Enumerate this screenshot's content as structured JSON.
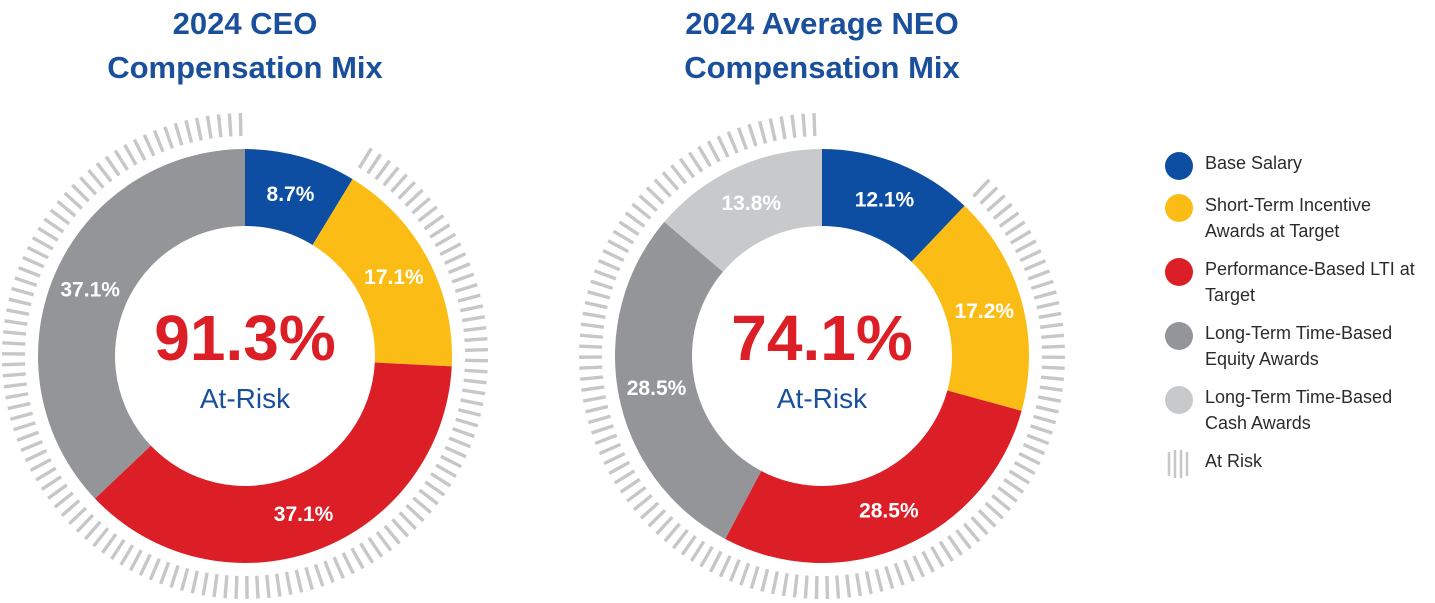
{
  "colors": {
    "base_salary": "#0e4ea2",
    "sti": "#fbbd15",
    "perf_lti": "#dc1f26",
    "time_equity": "#939598",
    "time_cash": "#c8c9cb",
    "at_risk_ticks": "#c6c7c8",
    "title": "#1a4f9c",
    "at_risk_pct": "#dc1f26"
  },
  "chart_data": [
    {
      "type": "pie",
      "title_line1": "2024 CEO",
      "title_line2": "Compensation Mix",
      "center_value": "91.3%",
      "center_label": "At-Risk",
      "slices": [
        {
          "key": "base_salary",
          "label": "Base Salary",
          "value": 8.7,
          "display": "8.7%"
        },
        {
          "key": "sti",
          "label": "Short-Term Incentive Awards at Target",
          "value": 17.1,
          "display": "17.1%"
        },
        {
          "key": "perf_lti",
          "label": "Performance-Based LTI at Target",
          "value": 37.1,
          "display": "37.1%"
        },
        {
          "key": "time_equity",
          "label": "Long-Term Time-Based Equity Awards",
          "value": 37.1,
          "display": "37.1%"
        }
      ]
    },
    {
      "type": "pie",
      "title_line1": "2024 Average NEO",
      "title_line2": "Compensation Mix",
      "center_value": "74.1%",
      "center_label": "At-Risk",
      "slices": [
        {
          "key": "base_salary",
          "label": "Base Salary",
          "value": 12.1,
          "display": "12.1%"
        },
        {
          "key": "sti",
          "label": "Short-Term Incentive Awards at Target",
          "value": 17.2,
          "display": "17.2%"
        },
        {
          "key": "perf_lti",
          "label": "Performance-Based LTI at Target",
          "value": 28.5,
          "display": "28.5%"
        },
        {
          "key": "time_equity",
          "label": "Long-Term Time-Based Equity Awards",
          "value": 28.5,
          "display": "28.5%"
        },
        {
          "key": "time_cash",
          "label": "Long-Term Time-Based Cash Awards",
          "value": 13.8,
          "display": "13.8%"
        }
      ]
    }
  ],
  "legend": [
    {
      "key": "base_salary",
      "line1": "Base Salary",
      "line2": ""
    },
    {
      "key": "sti",
      "line1": "Short-Term Incentive",
      "line2": "Awards at Target"
    },
    {
      "key": "perf_lti",
      "line1": "Performance-Based LTI at",
      "line2": "Target"
    },
    {
      "key": "time_equity",
      "line1": "Long-Term Time-Based",
      "line2": "Equity Awards"
    },
    {
      "key": "time_cash",
      "line1": "Long-Term Time-Based",
      "line2": "Cash Awards"
    }
  ],
  "legend_at_risk": "At Risk"
}
